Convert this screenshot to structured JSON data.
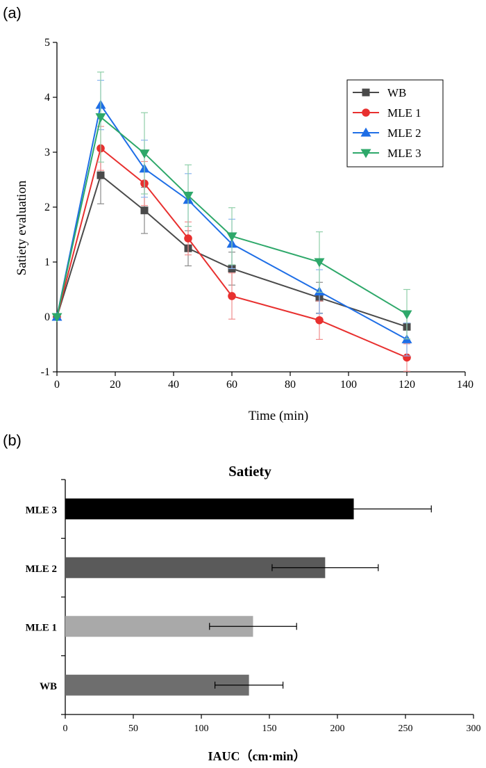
{
  "panel_labels": [
    "(a)",
    "(b)"
  ],
  "chart_data": [
    {
      "type": "line",
      "title": "",
      "xlabel": "Time (min)",
      "ylabel": "Satiety evaluation",
      "xlim": [
        0,
        140
      ],
      "ylim": [
        -1,
        5
      ],
      "xticks": [
        0,
        20,
        40,
        60,
        80,
        100,
        120,
        140
      ],
      "yticks": [
        -1,
        0,
        1,
        2,
        3,
        4,
        5
      ],
      "x": [
        0,
        15,
        30,
        45,
        60,
        90,
        120
      ],
      "legend_position": "top-right",
      "series": [
        {
          "name": "WB",
          "marker": "square",
          "color": "#4a4a4a",
          "errcolor": "#8a8a8a",
          "values": [
            0,
            2.58,
            1.94,
            1.25,
            0.88,
            0.35,
            -0.18
          ],
          "errors": [
            0,
            0.52,
            0.42,
            0.32,
            0.3,
            0.28,
            0.25
          ]
        },
        {
          "name": "MLE 1",
          "marker": "circle",
          "color": "#e8302f",
          "errcolor": "#f08c8c",
          "values": [
            0,
            3.07,
            2.43,
            1.43,
            0.38,
            -0.06,
            -0.74
          ],
          "errors": [
            0,
            0.4,
            0.4,
            0.3,
            0.42,
            0.35,
            0.25
          ]
        },
        {
          "name": "MLE 2",
          "marker": "triangle-up",
          "color": "#1e6ee6",
          "errcolor": "#8ab4f0",
          "values": [
            0,
            3.86,
            2.7,
            2.13,
            1.33,
            0.46,
            -0.41
          ],
          "errors": [
            0,
            0.45,
            0.52,
            0.48,
            0.45,
            0.4,
            0.3
          ]
        },
        {
          "name": "MLE 3",
          "marker": "triangle-down",
          "color": "#2ea86a",
          "errcolor": "#8fcfa8",
          "values": [
            0,
            3.64,
            2.98,
            2.21,
            1.47,
            1.0,
            0.05
          ],
          "errors": [
            0,
            0.82,
            0.74,
            0.56,
            0.52,
            0.55,
            0.45
          ]
        }
      ]
    },
    {
      "type": "bar",
      "orientation": "horizontal",
      "title": "Satiety",
      "xlabel": "IAUC（cm·min）",
      "ylabel": "",
      "xlim": [
        0,
        300
      ],
      "xticks": [
        0,
        50,
        100,
        150,
        200,
        250,
        300
      ],
      "categories": [
        "MLE 3",
        "MLE 2",
        "MLE 1",
        "WB"
      ],
      "values": [
        212,
        191,
        138,
        135
      ],
      "errors": [
        57,
        39,
        32,
        25
      ],
      "colors": [
        "#000000",
        "#5a5a5a",
        "#a9a9a9",
        "#6e6e6e"
      ]
    }
  ]
}
